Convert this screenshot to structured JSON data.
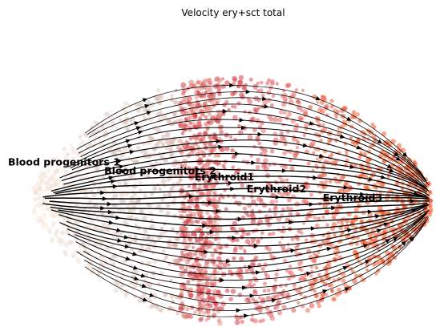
{
  "chart_data": {
    "type": "scatter",
    "title": "Velocity ery+sct total",
    "xlabel": "",
    "ylabel": "",
    "axes_visible": false,
    "grid": false,
    "legend": "on data",
    "overlay": "velocity streamlines",
    "clusters": [
      {
        "label": "Blood progenitors 1",
        "x": 0.05,
        "y": 0.52,
        "color": "#f6e8df"
      },
      {
        "label": "Blood progenitors 2",
        "x": 0.32,
        "y": 0.49,
        "color": "#d9bfb5"
      },
      {
        "label": "Erythroid1",
        "x": 0.48,
        "y": 0.47,
        "color": "#d64049"
      },
      {
        "label": "Erythroid2",
        "x": 0.61,
        "y": 0.43,
        "color": "#e0666a"
      },
      {
        "label": "Erythroid3",
        "x": 0.8,
        "y": 0.4,
        "color": "#f05a2c"
      }
    ],
    "xlim": [
      0,
      1
    ],
    "ylim": [
      0,
      1
    ],
    "flow_direction": "left-to-right, converging at x=1"
  }
}
